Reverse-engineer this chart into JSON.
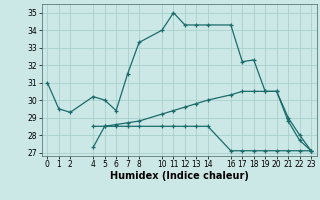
{
  "xlabel": "Humidex (Indice chaleur)",
  "background_color": "#cce8e6",
  "grid_color": "#aacfcd",
  "line_color": "#1a6b6b",
  "xlim": [
    -0.5,
    23.5
  ],
  "ylim": [
    26.8,
    35.5
  ],
  "xticks": [
    0,
    1,
    2,
    4,
    5,
    6,
    7,
    8,
    10,
    11,
    12,
    13,
    14,
    16,
    17,
    18,
    19,
    20,
    21,
    22,
    23
  ],
  "yticks": [
    27,
    28,
    29,
    30,
    31,
    32,
    33,
    34,
    35
  ],
  "lines": [
    {
      "x": [
        0,
        1,
        2,
        4,
        5,
        6,
        7,
        8,
        10,
        11,
        12,
        13,
        14,
        16,
        17,
        18,
        19,
        20,
        21,
        22,
        23
      ],
      "y": [
        31.0,
        29.5,
        29.3,
        30.2,
        30.0,
        29.4,
        31.5,
        33.3,
        34.0,
        35.0,
        34.3,
        34.3,
        34.3,
        34.3,
        32.2,
        32.3,
        30.5,
        30.5,
        29.0,
        28.0,
        27.1
      ]
    },
    {
      "x": [
        4,
        5,
        6,
        7,
        8,
        10,
        11,
        12,
        13,
        14,
        16,
        17,
        18,
        19,
        20,
        21,
        22,
        23
      ],
      "y": [
        28.5,
        28.5,
        28.6,
        28.7,
        28.8,
        29.2,
        29.4,
        29.6,
        29.8,
        30.0,
        30.3,
        30.5,
        30.5,
        30.5,
        30.5,
        28.8,
        27.7,
        27.1
      ]
    },
    {
      "x": [
        4,
        5,
        6,
        7,
        8,
        10,
        11,
        12,
        13,
        14,
        16,
        17,
        18,
        19,
        20,
        21,
        22,
        23
      ],
      "y": [
        27.3,
        28.5,
        28.5,
        28.5,
        28.5,
        28.5,
        28.5,
        28.5,
        28.5,
        28.5,
        27.1,
        27.1,
        27.1,
        27.1,
        27.1,
        27.1,
        27.1,
        27.1
      ]
    }
  ]
}
